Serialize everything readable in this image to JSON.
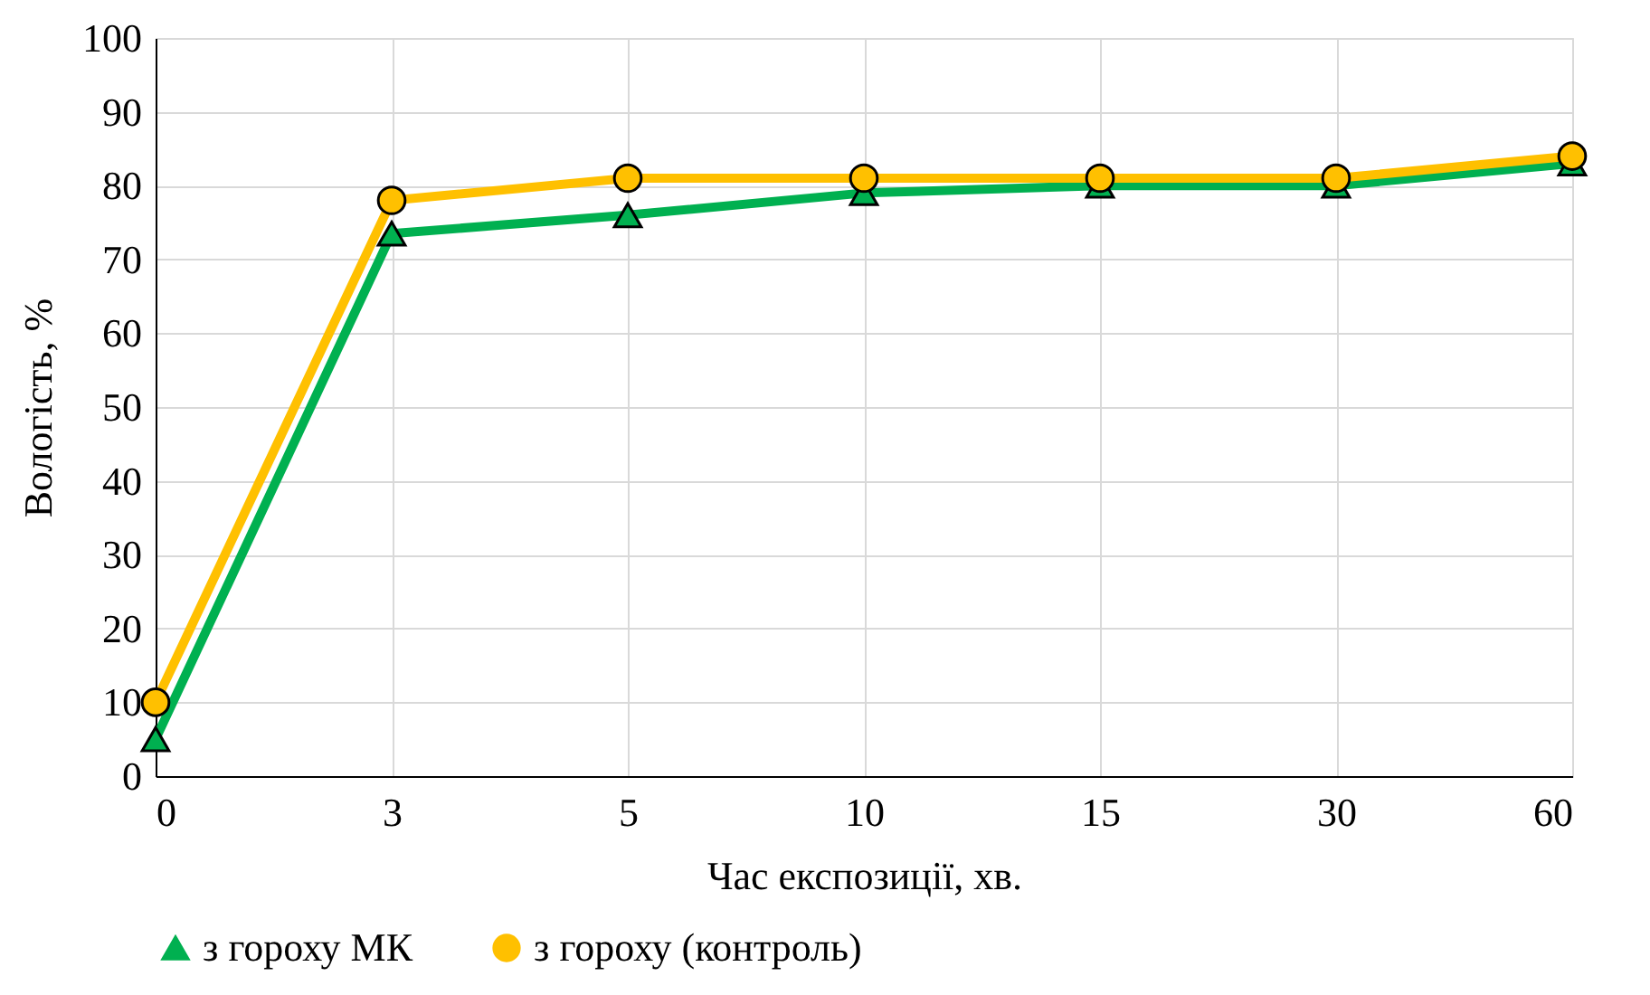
{
  "chart_data": {
    "type": "line",
    "xlabel": "Час експозиції, хв.",
    "ylabel": "Вологість, %",
    "categories": [
      "0",
      "3",
      "5",
      "10",
      "15",
      "30",
      "60"
    ],
    "series": [
      {
        "name": "з гороху МК",
        "color": "#00b050",
        "marker": "triangle",
        "values": [
          5,
          73.5,
          76,
          79,
          80,
          80,
          83
        ]
      },
      {
        "name": "з гороху (контроль)",
        "color": "#ffc000",
        "marker": "circle",
        "values": [
          10,
          78,
          81,
          81,
          81,
          81,
          84
        ]
      }
    ],
    "ylim": [
      0,
      100
    ],
    "yticks": [
      0,
      10,
      20,
      30,
      40,
      50,
      60,
      70,
      80,
      90,
      100
    ],
    "grid": true,
    "legend": "bottom"
  }
}
